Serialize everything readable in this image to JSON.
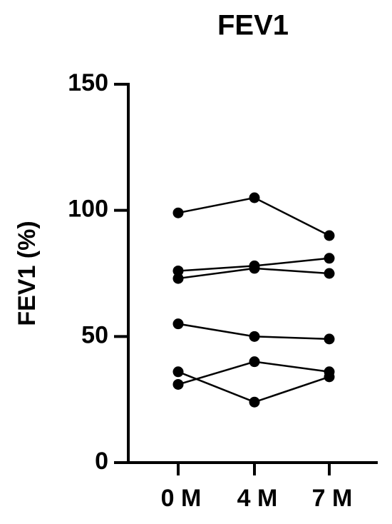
{
  "chart_data": {
    "type": "line",
    "title": "FEV1",
    "y_label": "FEV1 (%)",
    "categories": [
      "0 M",
      "4 M",
      "7 M"
    ],
    "series": [
      {
        "color": "#000000",
        "values": [
          99,
          105,
          90
        ]
      },
      {
        "color": "#000000",
        "values": [
          76,
          78,
          81
        ]
      },
      {
        "color": "#000000",
        "values": [
          73,
          77,
          75
        ]
      },
      {
        "color": "#000000",
        "values": [
          55,
          50,
          49
        ]
      },
      {
        "color": "#000000",
        "values": [
          36,
          24,
          34
        ]
      },
      {
        "color": "#000000",
        "values": [
          31,
          40,
          36
        ]
      }
    ],
    "ylim": [
      0,
      150
    ],
    "yticks": [
      0,
      50,
      100,
      150
    ],
    "grid": false
  }
}
